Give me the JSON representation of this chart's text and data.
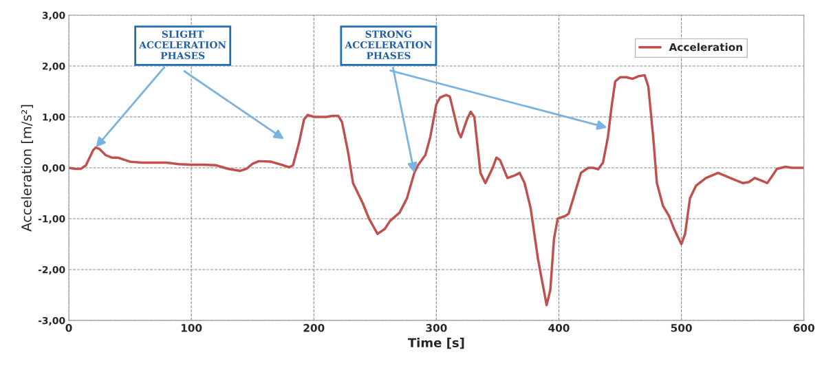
{
  "chart_data": {
    "type": "line",
    "xlabel": "Time [s]",
    "ylabel": "Acceleration [m/s²]",
    "xlim": [
      0,
      600
    ],
    "xticks": [
      0,
      100,
      200,
      300,
      400,
      500,
      600
    ],
    "ylim": [
      -3,
      3
    ],
    "yticks": [
      {
        "value": -3,
        "label": "-3,00"
      },
      {
        "value": -2,
        "label": "-2,00"
      },
      {
        "value": -1,
        "label": "-1,00"
      },
      {
        "value": 0,
        "label": "0,00"
      },
      {
        "value": 1,
        "label": "1,00"
      },
      {
        "value": 2,
        "label": "2,00"
      },
      {
        "value": 3,
        "label": "3,00"
      }
    ],
    "grid": true,
    "legend": "top right",
    "marker": "none",
    "line_style": "solid",
    "series": [
      {
        "name": "Acceleration",
        "color": "#c0504d",
        "x": [
          0,
          5,
          10,
          14,
          20,
          22,
          25,
          30,
          35,
          40,
          45,
          50,
          60,
          70,
          80,
          90,
          100,
          110,
          120,
          130,
          140,
          145,
          150,
          155,
          165,
          175,
          180,
          183,
          188,
          192,
          195,
          200,
          210,
          215,
          220,
          223,
          228,
          232,
          240,
          245,
          252,
          258,
          262,
          270,
          276,
          282,
          285,
          291,
          295,
          300,
          303,
          308,
          311,
          318,
          320,
          325,
          328,
          331,
          336,
          340,
          346,
          349,
          352,
          358,
          364,
          368,
          372,
          377,
          383,
          390,
          393,
          396,
          399,
          405,
          408,
          413,
          418,
          424,
          428,
          432,
          436,
          440,
          443,
          446,
          450,
          455,
          460,
          465,
          470,
          473,
          477,
          480,
          485,
          490,
          494,
          500,
          503,
          507,
          512,
          520,
          530,
          540,
          550,
          555,
          560,
          565,
          570,
          573,
          578,
          585,
          590,
          600
        ],
        "values": [
          0,
          -0.02,
          -0.02,
          0.05,
          0.35,
          0.4,
          0.37,
          0.25,
          0.2,
          0.2,
          0.16,
          0.12,
          0.1,
          0.1,
          0.1,
          0.07,
          0.06,
          0.06,
          0.05,
          -0.02,
          -0.06,
          -0.02,
          0.08,
          0.13,
          0.12,
          0.05,
          0.01,
          0.05,
          0.5,
          0.95,
          1.04,
          1.0,
          1.0,
          1.02,
          1.02,
          0.9,
          0.3,
          -0.3,
          -0.7,
          -1.0,
          -1.3,
          -1.2,
          -1.05,
          -0.88,
          -0.6,
          -0.1,
          0.05,
          0.25,
          0.6,
          1.25,
          1.38,
          1.43,
          1.4,
          0.7,
          0.6,
          0.95,
          1.1,
          1.0,
          -0.1,
          -0.3,
          0.0,
          0.2,
          0.15,
          -0.2,
          -0.15,
          -0.1,
          -0.3,
          -0.8,
          -1.8,
          -2.7,
          -2.4,
          -1.4,
          -1.0,
          -0.95,
          -0.9,
          -0.5,
          -0.1,
          0.0,
          0.0,
          -0.03,
          0.1,
          0.6,
          1.2,
          1.7,
          1.78,
          1.78,
          1.75,
          1.8,
          1.82,
          1.6,
          0.6,
          -0.3,
          -0.75,
          -0.95,
          -1.2,
          -1.5,
          -1.3,
          -0.6,
          -0.35,
          -0.2,
          -0.1,
          -0.2,
          -0.3,
          -0.28,
          -0.2,
          -0.25,
          -0.3,
          -0.2,
          -0.02,
          0.02,
          0.0,
          0.0
        ]
      }
    ],
    "annotations": [
      {
        "text": "SLIGHT\nACCELERATION\nPHASES",
        "x": 22,
        "y": 0.4
      },
      {
        "text": "STRONG\nACCELERATION\nPHASES",
        "x": 282,
        "y": -0.1
      }
    ]
  }
}
